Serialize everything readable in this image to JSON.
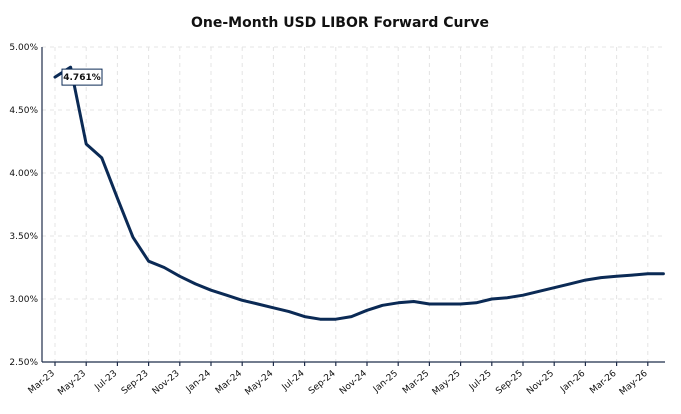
{
  "chart_data": {
    "type": "line",
    "title": "One-Month USD LIBOR Forward Curve",
    "xlabel": "",
    "ylabel": "",
    "ylim": [
      2.5,
      5.0
    ],
    "yticks": [
      "2.50%",
      "3.00%",
      "3.50%",
      "4.00%",
      "4.50%",
      "5.00%"
    ],
    "xticks": [
      "Mar-23",
      "May-23",
      "Jul-23",
      "Sep-23",
      "Nov-23",
      "Jan-24",
      "Mar-24",
      "May-24",
      "Jul-24",
      "Sep-24",
      "Nov-24",
      "Jan-25",
      "Mar-25",
      "May-25",
      "Jul-25",
      "Sep-25",
      "Nov-25",
      "Jan-26",
      "Mar-26",
      "May-26"
    ],
    "grid": true,
    "legend": "none",
    "series_color": "#0b2a55",
    "annotation": {
      "label": "4.761%",
      "x": "Mar-23",
      "y": 4.761
    },
    "series": [
      {
        "x": [
          "Mar-23",
          "Apr-23",
          "May-23",
          "Jun-23",
          "Jul-23",
          "Aug-23",
          "Sep-23",
          "Oct-23",
          "Nov-23",
          "Dec-23",
          "Jan-24",
          "Feb-24",
          "Mar-24",
          "Apr-24",
          "May-24",
          "Jun-24",
          "Jul-24",
          "Aug-24",
          "Sep-24",
          "Oct-24",
          "Nov-24",
          "Dec-24",
          "Jan-25",
          "Feb-25",
          "Mar-25",
          "Apr-25",
          "May-25",
          "Jun-25",
          "Jul-25",
          "Aug-25",
          "Sep-25",
          "Oct-25",
          "Nov-25",
          "Dec-25",
          "Jan-26",
          "Feb-26",
          "Mar-26",
          "Apr-26",
          "May-26",
          "Jun-26"
        ],
        "values": [
          4.761,
          4.84,
          4.23,
          4.12,
          3.8,
          3.49,
          3.3,
          3.25,
          3.18,
          3.12,
          3.07,
          3.03,
          2.99,
          2.96,
          2.93,
          2.9,
          2.86,
          2.84,
          2.84,
          2.86,
          2.91,
          2.95,
          2.97,
          2.98,
          2.96,
          2.96,
          2.96,
          2.97,
          3.0,
          3.01,
          3.03,
          3.06,
          3.09,
          3.12,
          3.15,
          3.17,
          3.18,
          3.19,
          3.2,
          3.2
        ]
      }
    ]
  }
}
